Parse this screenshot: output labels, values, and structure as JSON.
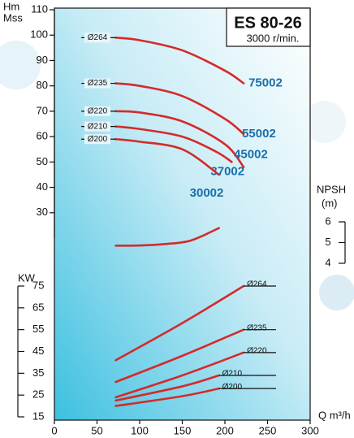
{
  "chart_data": [
    {
      "type": "line",
      "title": "ES 80-26",
      "subtitle": "3000 r/min.",
      "ylabel": [
        "Hm",
        "Mss"
      ],
      "xlabel": "Q m³/h",
      "xlim": [
        0,
        300
      ],
      "xticks": [
        0,
        50,
        100,
        150,
        200,
        250,
        300
      ],
      "ylim": [
        20,
        110
      ],
      "yticks": [
        30,
        40,
        50,
        60,
        70,
        80,
        90,
        100,
        110
      ],
      "series": [
        {
          "name": "Ø264",
          "label": "75002",
          "color": "#d42a2a",
          "x": [
            72,
            100,
            150,
            200,
            222
          ],
          "values": [
            99,
            98,
            94,
            86,
            81
          ]
        },
        {
          "name": "Ø235",
          "label": "55002",
          "color": "#d42a2a",
          "x": [
            72,
            100,
            150,
            200,
            222
          ],
          "values": [
            81,
            80,
            76,
            67,
            61
          ]
        },
        {
          "name": "Ø220",
          "label": "45002",
          "color": "#d42a2a",
          "x": [
            72,
            100,
            150,
            200,
            222
          ],
          "values": [
            70,
            69.5,
            66,
            57,
            48
          ]
        },
        {
          "name": "Ø210",
          "label": "37002",
          "color": "#d42a2a",
          "x": [
            72,
            100,
            150,
            190,
            208
          ],
          "values": [
            64,
            63,
            60,
            54,
            50
          ]
        },
        {
          "name": "Ø200",
          "label": "30002",
          "color": "#d42a2a",
          "x": [
            72,
            100,
            150,
            193
          ],
          "values": [
            59,
            58,
            55,
            45
          ]
        }
      ]
    },
    {
      "type": "line",
      "ylabel": "KW",
      "ylim": [
        15,
        75
      ],
      "yticks": [
        15,
        25,
        35,
        45,
        55,
        65,
        75
      ],
      "series": [
        {
          "name": "Ø264",
          "color": "#d42a2a",
          "x": [
            72,
            150,
            222
          ],
          "values": [
            41,
            58,
            75
          ]
        },
        {
          "name": "Ø235",
          "color": "#d42a2a",
          "x": [
            72,
            150,
            222
          ],
          "values": [
            31,
            43,
            55
          ]
        },
        {
          "name": "Ø220",
          "color": "#d42a2a",
          "x": [
            72,
            150,
            222
          ],
          "values": [
            24,
            34,
            44.5
          ]
        },
        {
          "name": "Ø210",
          "color": "#d42a2a",
          "x": [
            72,
            150,
            193
          ],
          "values": [
            22.5,
            29,
            34
          ]
        },
        {
          "name": "Ø200",
          "color": "#d42a2a",
          "x": [
            72,
            150,
            193
          ],
          "values": [
            20,
            24.5,
            28
          ]
        }
      ]
    },
    {
      "type": "line",
      "ylabel": [
        "NPSH",
        "(m)"
      ],
      "ylim": [
        4,
        6
      ],
      "yticks": [
        4,
        5,
        6
      ],
      "series": [
        {
          "color": "#d42a2a",
          "x": [
            72,
            100,
            130,
            160,
            193
          ],
          "values": [
            4.85,
            4.86,
            4.93,
            5.1,
            5.7
          ]
        }
      ]
    }
  ]
}
